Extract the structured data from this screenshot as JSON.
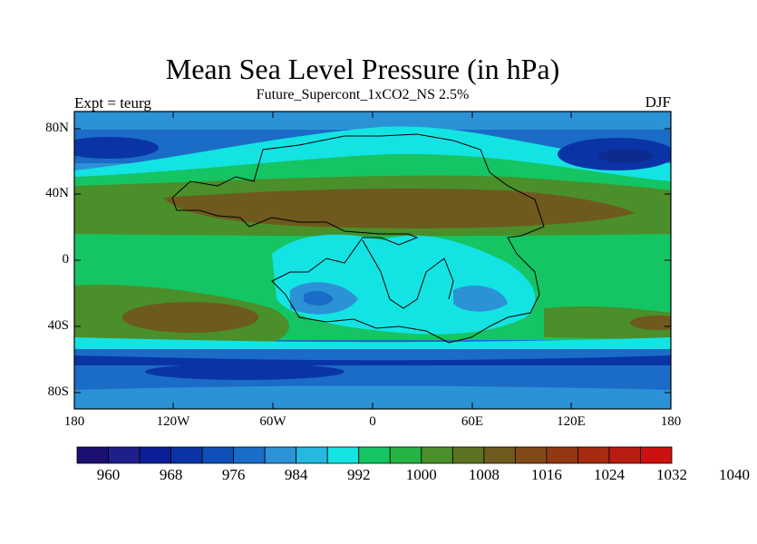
{
  "title": "Mean Sea Level Pressure (in hPa)",
  "subtitle": "Future_Supercont_1xCO2_NS 2.5%",
  "left_label": "Expt = teurg",
  "right_label": "DJF",
  "lat_labels": [
    "80N",
    "40N",
    "0",
    "40S",
    "80S"
  ],
  "lon_labels": [
    "180",
    "120W",
    "60W",
    "0",
    "60E",
    "120E",
    "180"
  ],
  "colorbar": {
    "colors": [
      "#1b0f70",
      "#1f1f8a",
      "#0b1e96",
      "#0a34a6",
      "#0d4fb7",
      "#1a6cc6",
      "#2b92d6",
      "#25b8e0",
      "#14e3e3",
      "#15c463",
      "#25b344",
      "#4a8f2a",
      "#5b7321",
      "#6e5a1e",
      "#7f4a18",
      "#923815",
      "#a52b12",
      "#b81c10",
      "#cc1010"
    ],
    "labels": [
      "960",
      "968",
      "976",
      "984",
      "992",
      "1000",
      "1008",
      "1016",
      "1024",
      "1032",
      "1040"
    ]
  },
  "colors": {
    "deep_low": "#0a34a6",
    "low": "#1a6cc6",
    "mid_low": "#2b92d6",
    "cyan": "#14e3e3",
    "green": "#15c463",
    "dark_green": "#4a8f2a",
    "brown": "#6e5a1e"
  }
}
